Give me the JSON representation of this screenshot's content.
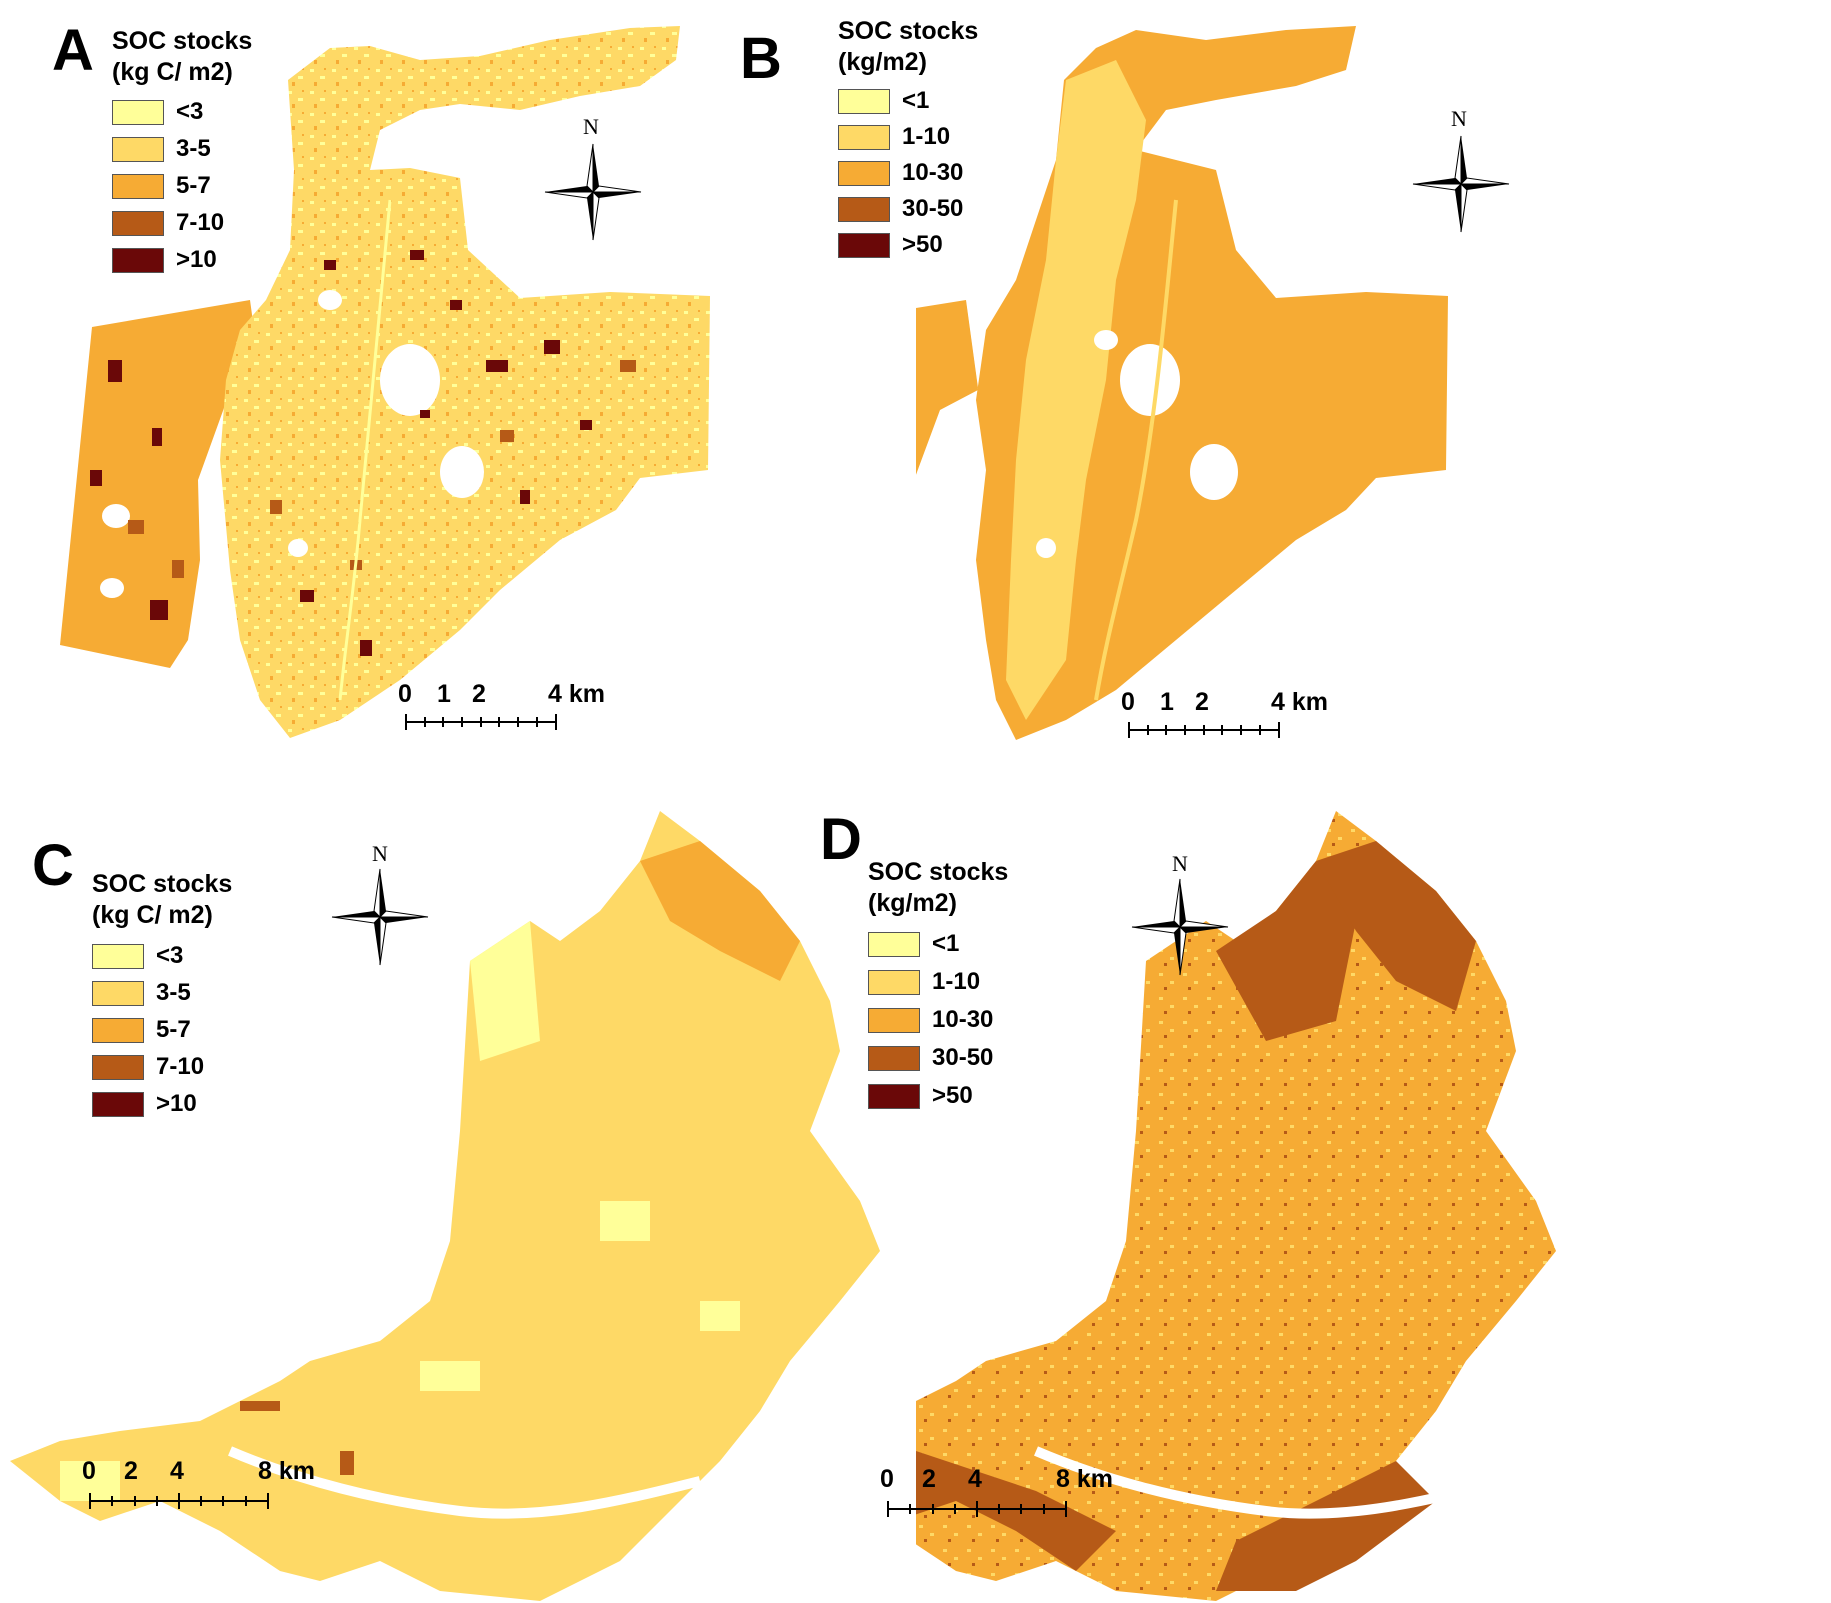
{
  "colors": {
    "c1": "#ffff99",
    "c2": "#fed966",
    "c3": "#f6ab34",
    "c4": "#b65a17",
    "c5": "#6a0808",
    "water": "#ffffff"
  },
  "panels": [
    {
      "letter": "A",
      "legend_title_line1": "SOC stocks",
      "legend_title_line2": "(kg C/ m2)",
      "legend": [
        "<3",
        "3-5",
        "5-7",
        "7-10",
        ">10"
      ],
      "north": "N",
      "scale_ticks": [
        "0",
        "1",
        "2",
        "4 km"
      ]
    },
    {
      "letter": "B",
      "legend_title_line1": "SOC stocks",
      "legend_title_line2": "(kg/m2)",
      "legend": [
        "<1",
        "1-10",
        "10-30",
        "30-50",
        ">50"
      ],
      "north": "N",
      "scale_ticks": [
        "0",
        "1",
        "2",
        "4 km"
      ]
    },
    {
      "letter": "C",
      "legend_title_line1": "SOC stocks",
      "legend_title_line2": "(kg C/ m2)",
      "legend": [
        "<3",
        "3-5",
        "5-7",
        "7-10",
        ">10"
      ],
      "north": "N",
      "scale_ticks": [
        "0",
        "2",
        "4",
        "8 km"
      ]
    },
    {
      "letter": "D",
      "legend_title_line1": "SOC stocks",
      "legend_title_line2": "(kg/m2)",
      "legend": [
        "<1",
        "1-10",
        "10-30",
        "30-50",
        ">50"
      ],
      "north": "N",
      "scale_ticks": [
        "0",
        "2",
        "4",
        "8 km"
      ]
    }
  ]
}
